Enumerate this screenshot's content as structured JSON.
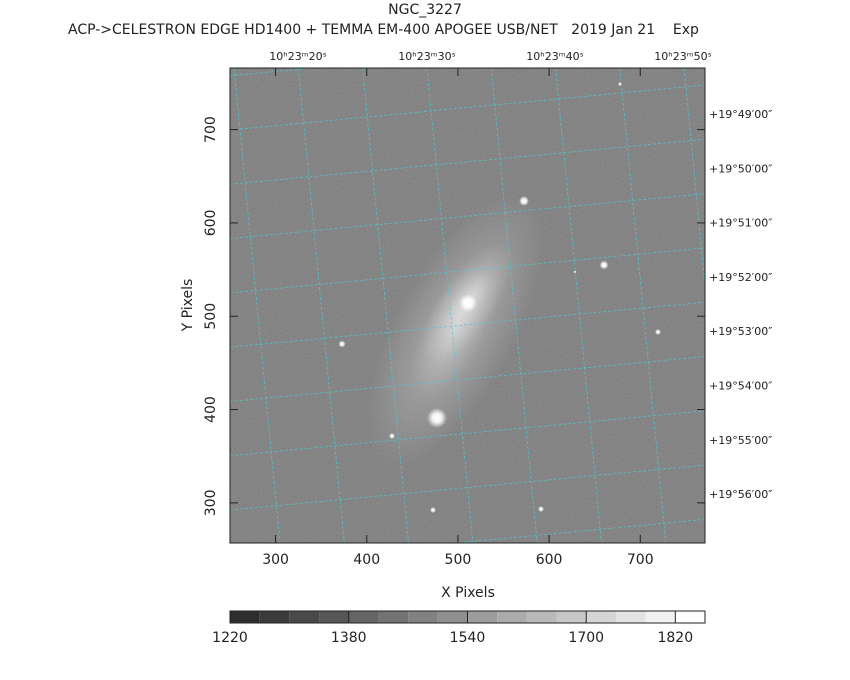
{
  "chart_data": {
    "type": "image",
    "title": "NGC_3227",
    "subtitle": "ACP->CELESTRON EDGE HD1400 + TEMMA EM-400 APOGEE USB/NET   2019 Jan 21    Exp",
    "xlabel": "X Pixels",
    "ylabel": "Y Pixels",
    "xlim": [
      250,
      771
    ],
    "ylim": [
      257,
      766
    ],
    "xticks": [
      300,
      400,
      500,
      600,
      700
    ],
    "yticks": [
      300,
      400,
      500,
      600,
      700
    ],
    "ra_labels": [
      "10ʰ23ᵐ20ˢ",
      "10ʰ23ᵐ30ˢ",
      "10ʰ23ᵐ40ˢ",
      "10ʰ23ᵐ50ˢ"
    ],
    "dec_labels": [
      "+19°49′00″",
      "+19°50′00″",
      "+19°51′00″",
      "+19°52′00″",
      "+19°53′00″",
      "+19°54′00″",
      "+19°55′00″",
      "+19°56′00″"
    ],
    "grid_color": "#4fc8d0",
    "colorbar": {
      "lim": [
        1220,
        1860
      ],
      "ticks": [
        1220,
        1380,
        1540,
        1700,
        1820
      ],
      "step": 40
    }
  }
}
